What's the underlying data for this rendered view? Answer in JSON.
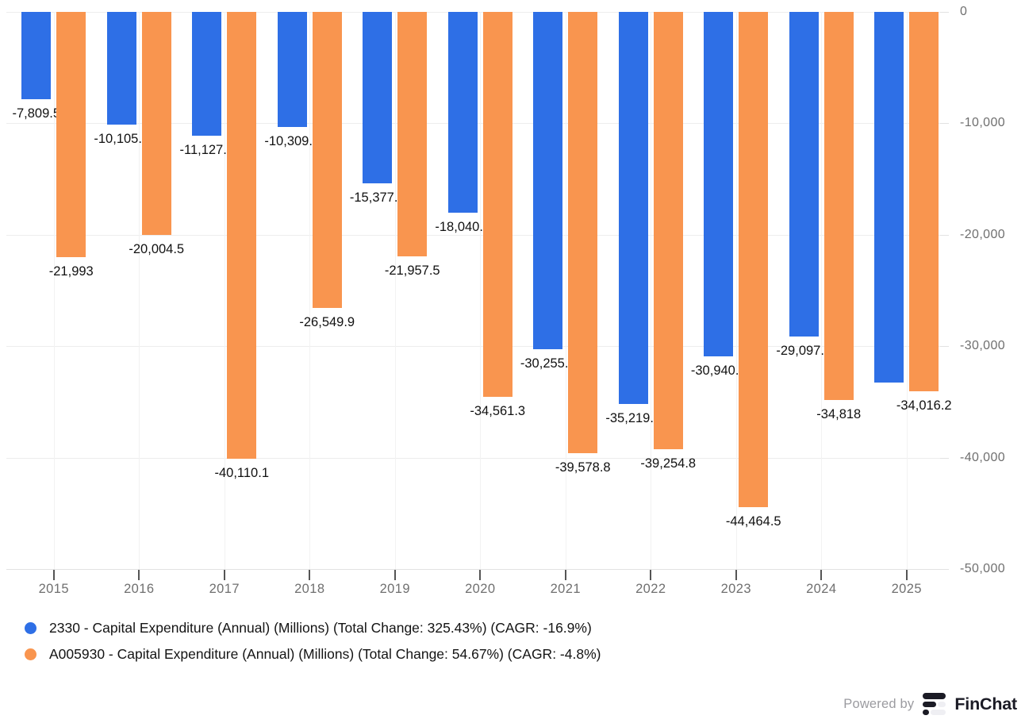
{
  "chart_data": {
    "type": "bar",
    "title": "",
    "orientation": "vertical",
    "categories": [
      "2015",
      "2016",
      "2017",
      "2018",
      "2019",
      "2020",
      "2021",
      "2022",
      "2023",
      "2024",
      "2025"
    ],
    "series": [
      {
        "name": "2330 - Capital Expenditure (Annual) (Millions) (Total Change: 325.43%) (CAGR: -16.9%)",
        "color": "#2E6FE6",
        "values": [
          -7809.5,
          -10105.2,
          -11127.2,
          -10309.8,
          -15377.6,
          -18040.3,
          -30255.5,
          -35219.2,
          -30940.7,
          -29097.7,
          -33250
        ],
        "labels": [
          "-7,809.5",
          "-10,105.2",
          "-11,127.2",
          "-10,309.8",
          "-15,377.6",
          "-18,040.3",
          "-30,255.5",
          "-35,219.2",
          "-30,940.7",
          "-29,097.7",
          ""
        ]
      },
      {
        "name": "A005930 - Capital Expenditure (Annual) (Millions) (Total Change: 54.67%) (CAGR: -4.8%)",
        "color": "#F9954F",
        "values": [
          -21993,
          -20004.5,
          -40110.1,
          -26549.9,
          -21957.5,
          -34561.3,
          -39578.8,
          -39254.8,
          -44464.5,
          -34818,
          -34016.2
        ],
        "labels": [
          "-21,993",
          "-20,004.5",
          "-40,110.1",
          "-26,549.9",
          "-21,957.5",
          "-34,561.3",
          "-39,578.8",
          "-39,254.8",
          "-44,464.5",
          "-34,818",
          "-34,016.2"
        ]
      }
    ],
    "y_ticks": [
      {
        "value": 0,
        "label": "0"
      },
      {
        "value": -10000,
        "label": "-10,000"
      },
      {
        "value": -20000,
        "label": "-20,000"
      },
      {
        "value": -30000,
        "label": "-30,000"
      },
      {
        "value": -40000,
        "label": "-40,000"
      },
      {
        "value": -50000,
        "label": "-50,000"
      }
    ],
    "ylim": [
      -50000,
      0
    ],
    "xlabel": "",
    "ylabel": "",
    "grid": true,
    "value_labels_shown": true,
    "legend_position": "bottom-left",
    "y_axis_side": "right"
  },
  "footer": {
    "powered_by_label": "Powered by",
    "brand_name": "FinChat"
  },
  "colors": {
    "background": "#FFFFFF",
    "series_1_blue": "#2E6FE6",
    "series_2_orange": "#F9954F",
    "h_gridline": "#EDEDED",
    "v_gridline": "#F2F2F2",
    "axis_line": "#E2E2E2",
    "axis_text": "#6F6F6F",
    "value_label_text": "#111111",
    "legend_text": "#141414",
    "powered_by_text": "#9B9BA0",
    "brand_text": "#1B1B25",
    "logo_light": "#EFEFF3"
  }
}
